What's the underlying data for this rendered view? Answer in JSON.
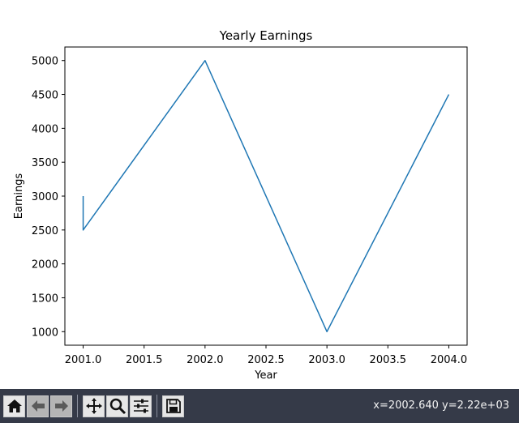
{
  "chart_data": {
    "type": "line",
    "title": "Yearly Earnings",
    "xlabel": "Year",
    "ylabel": "Earnings",
    "x": [
      2001,
      2001,
      2002,
      2003,
      2004
    ],
    "y": [
      3000,
      2500,
      5000,
      1000,
      4500
    ],
    "xlim": [
      2000.85,
      2004.15
    ],
    "ylim": [
      800,
      5200
    ],
    "xticks": [
      2001.0,
      2001.5,
      2002.0,
      2002.5,
      2003.0,
      2003.5,
      2004.0
    ],
    "xtick_labels": [
      "2001.0",
      "2001.5",
      "2002.0",
      "2002.5",
      "2003.0",
      "2003.5",
      "2004.0"
    ],
    "yticks": [
      1000,
      1500,
      2000,
      2500,
      3000,
      3500,
      4000,
      4500,
      5000
    ],
    "ytick_labels": [
      "1000",
      "1500",
      "2000",
      "2500",
      "3000",
      "3500",
      "4000",
      "4500",
      "5000"
    ],
    "line_color": "#1f77b4",
    "grid": false
  },
  "toolbar": {
    "buttons": [
      {
        "icon": "home-icon",
        "enabled": true
      },
      {
        "icon": "back-arrow-icon",
        "enabled": false
      },
      {
        "icon": "forward-arrow-icon",
        "enabled": false
      },
      {
        "icon": "pan-icon",
        "enabled": true
      },
      {
        "icon": "zoom-icon",
        "enabled": true
      },
      {
        "icon": "configure-subplots-icon",
        "enabled": true
      },
      {
        "icon": "save-icon",
        "enabled": true
      }
    ],
    "coords": "x=2002.640 y=2.22e+03",
    "background": "#353a48"
  }
}
